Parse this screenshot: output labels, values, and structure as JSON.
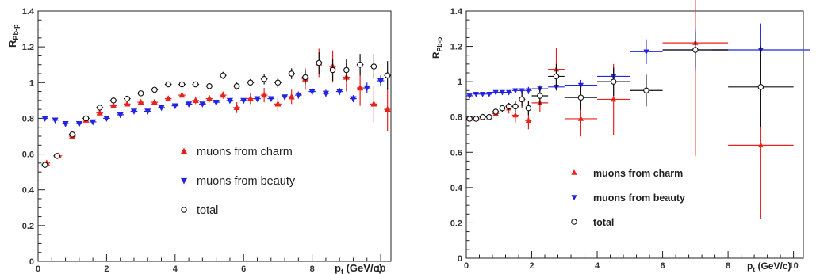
{
  "chart_data": [
    {
      "type": "scatter",
      "title": "",
      "ylabel": "R",
      "ylabel_sub": "Pb-p",
      "xlabel_main": "p",
      "xlabel_sub": "t",
      "xlabel_unit": "(GeV/c)",
      "xlim": [
        0,
        10.3
      ],
      "ylim": [
        0,
        1.4
      ],
      "xticks": [
        0,
        2,
        4,
        6,
        8,
        10
      ],
      "yticks": [
        0,
        0.2,
        0.4,
        0.6,
        0.8,
        1,
        1.2,
        1.4
      ],
      "grid": false,
      "legend_position": "bottom-center",
      "legend": [
        "muons from charm",
        "muons from beauty",
        "total"
      ],
      "series": [
        {
          "name": "muons from charm",
          "color": "#e8221c",
          "marker": "triangle-up",
          "x": [
            0.25,
            0.6,
            1.0,
            1.4,
            1.8,
            2.2,
            2.6,
            3.0,
            3.4,
            3.8,
            4.2,
            4.6,
            5.0,
            5.4,
            5.8,
            6.2,
            6.6,
            7.0,
            7.4,
            7.8,
            8.2,
            8.6,
            9.0,
            9.4,
            9.8,
            10.2
          ],
          "y": [
            0.55,
            0.59,
            0.7,
            0.79,
            0.83,
            0.87,
            0.88,
            0.89,
            0.89,
            0.91,
            0.93,
            0.9,
            0.91,
            0.93,
            0.86,
            0.91,
            0.93,
            0.88,
            0.92,
            1.02,
            1.11,
            1.09,
            1.03,
            0.97,
            0.88,
            0.85
          ],
          "ex": [
            0.1,
            0.1,
            0.1,
            0.1,
            0.1,
            0.1,
            0.1,
            0.1,
            0.1,
            0.1,
            0.1,
            0.1,
            0.1,
            0.1,
            0.1,
            0.1,
            0.1,
            0.1,
            0.1,
            0.1,
            0.1,
            0.1,
            0.1,
            0.1,
            0.1,
            0.1
          ],
          "ey": [
            0.01,
            0.01,
            0.01,
            0.01,
            0.01,
            0.01,
            0.01,
            0.01,
            0.01,
            0.01,
            0.01,
            0.02,
            0.02,
            0.02,
            0.03,
            0.03,
            0.04,
            0.04,
            0.04,
            0.06,
            0.08,
            0.09,
            0.08,
            0.1,
            0.1,
            0.12
          ]
        },
        {
          "name": "muons from beauty",
          "color": "#2424e0",
          "marker": "triangle-down",
          "x": [
            0.2,
            0.5,
            0.8,
            1.2,
            1.6,
            2.0,
            2.4,
            2.8,
            3.2,
            3.6,
            4.0,
            4.4,
            4.8,
            5.2,
            5.6,
            6.0,
            6.4,
            6.8,
            7.2,
            7.6,
            8.0,
            8.4,
            8.8,
            9.2,
            9.6,
            10.0
          ],
          "y": [
            0.8,
            0.79,
            0.77,
            0.77,
            0.78,
            0.8,
            0.82,
            0.84,
            0.84,
            0.86,
            0.87,
            0.88,
            0.88,
            0.89,
            0.9,
            0.9,
            0.91,
            0.91,
            0.92,
            0.93,
            0.95,
            0.94,
            0.95,
            0.91,
            0.97,
            1.01
          ],
          "ex": [
            0.1,
            0.1,
            0.1,
            0.1,
            0.1,
            0.1,
            0.1,
            0.1,
            0.1,
            0.1,
            0.1,
            0.1,
            0.1,
            0.1,
            0.1,
            0.1,
            0.1,
            0.1,
            0.1,
            0.1,
            0.1,
            0.1,
            0.1,
            0.1,
            0.1,
            0.1
          ],
          "ey": [
            0.01,
            0.01,
            0.01,
            0.01,
            0.01,
            0.01,
            0.01,
            0.01,
            0.01,
            0.01,
            0.01,
            0.01,
            0.01,
            0.01,
            0.01,
            0.01,
            0.01,
            0.01,
            0.01,
            0.02,
            0.02,
            0.02,
            0.02,
            0.02,
            0.03,
            0.03
          ]
        },
        {
          "name": "total",
          "color": "#111111",
          "marker": "circle-open",
          "x": [
            0.2,
            0.55,
            1.0,
            1.4,
            1.8,
            2.2,
            2.6,
            3.0,
            3.4,
            3.8,
            4.2,
            4.6,
            5.0,
            5.4,
            5.8,
            6.2,
            6.6,
            7.0,
            7.4,
            7.8,
            8.2,
            8.6,
            9.0,
            9.4,
            9.8,
            10.2
          ],
          "y": [
            0.54,
            0.59,
            0.71,
            0.8,
            0.86,
            0.9,
            0.91,
            0.94,
            0.96,
            0.99,
            0.99,
            0.99,
            0.98,
            1.04,
            0.98,
            1.0,
            1.02,
            1.0,
            1.05,
            1.03,
            1.11,
            1.07,
            1.07,
            1.1,
            1.09,
            1.04
          ],
          "ex": [
            0.1,
            0.1,
            0.1,
            0.1,
            0.1,
            0.1,
            0.1,
            0.1,
            0.1,
            0.1,
            0.1,
            0.1,
            0.1,
            0.1,
            0.1,
            0.1,
            0.1,
            0.1,
            0.1,
            0.1,
            0.1,
            0.1,
            0.1,
            0.1,
            0.1,
            0.1
          ],
          "ey": [
            0.01,
            0.01,
            0.01,
            0.01,
            0.01,
            0.01,
            0.01,
            0.01,
            0.01,
            0.01,
            0.01,
            0.01,
            0.01,
            0.02,
            0.02,
            0.02,
            0.03,
            0.03,
            0.03,
            0.04,
            0.06,
            0.06,
            0.06,
            0.06,
            0.07,
            0.08
          ]
        }
      ]
    },
    {
      "type": "scatter",
      "title": "",
      "ylabel": "R",
      "ylabel_sub": "Pb-p",
      "xlabel_main": "p",
      "xlabel_sub": "t",
      "xlabel_unit": "(GeV/c)",
      "xlim": [
        0,
        10.3
      ],
      "ylim": [
        0,
        1.4
      ],
      "xticks": [
        0,
        2,
        4,
        6,
        8,
        10
      ],
      "yticks": [
        0,
        0.2,
        0.4,
        0.6,
        0.8,
        1,
        1.2,
        1.4
      ],
      "grid": false,
      "legend_position": "bottom-center",
      "legend": [
        "muons from charm",
        "muons from beauty",
        "total"
      ],
      "series": [
        {
          "name": "muons from charm",
          "color": "#e8221c",
          "marker": "triangle-up",
          "x": [
            0.1,
            0.3,
            0.5,
            0.7,
            0.9,
            1.1,
            1.3,
            1.5,
            1.7,
            1.9,
            2.25,
            2.75,
            3.5,
            4.5,
            7.0,
            9.0
          ],
          "y": [
            0.79,
            0.79,
            0.8,
            0.8,
            0.82,
            0.85,
            0.85,
            0.81,
            0.9,
            0.78,
            0.88,
            1.07,
            0.79,
            0.9,
            1.22,
            0.64
          ],
          "ex": [
            0.1,
            0.1,
            0.1,
            0.1,
            0.1,
            0.1,
            0.1,
            0.1,
            0.1,
            0.1,
            0.25,
            0.25,
            0.5,
            0.5,
            1.0,
            1.0
          ],
          "ey": [
            0.01,
            0.01,
            0.01,
            0.01,
            0.01,
            0.02,
            0.03,
            0.04,
            0.05,
            0.05,
            0.05,
            0.12,
            0.1,
            0.2,
            0.64,
            0.42
          ]
        },
        {
          "name": "muons from beauty",
          "color": "#2424e0",
          "marker": "triangle-down",
          "x": [
            0.1,
            0.3,
            0.5,
            0.7,
            0.9,
            1.1,
            1.3,
            1.5,
            1.7,
            1.9,
            2.25,
            2.75,
            3.5,
            4.5,
            5.5,
            7.0,
            9.0
          ],
          "y": [
            0.92,
            0.93,
            0.93,
            0.93,
            0.94,
            0.94,
            0.94,
            0.95,
            0.95,
            0.95,
            0.96,
            0.97,
            0.98,
            1.03,
            1.17,
            1.18,
            1.18
          ],
          "ex": [
            0.1,
            0.1,
            0.1,
            0.1,
            0.1,
            0.1,
            0.1,
            0.1,
            0.1,
            0.1,
            0.25,
            0.25,
            0.5,
            0.5,
            0.5,
            1.0,
            1.5
          ],
          "ey": [
            0.01,
            0.01,
            0.01,
            0.01,
            0.01,
            0.01,
            0.01,
            0.01,
            0.01,
            0.02,
            0.02,
            0.02,
            0.03,
            0.04,
            0.07,
            0.12,
            0.15
          ]
        },
        {
          "name": "total",
          "color": "#111111",
          "marker": "circle-open",
          "x": [
            0.1,
            0.3,
            0.5,
            0.7,
            0.9,
            1.1,
            1.3,
            1.5,
            1.7,
            1.9,
            2.25,
            2.75,
            3.5,
            4.5,
            5.5,
            7.0,
            9.0
          ],
          "y": [
            0.79,
            0.79,
            0.8,
            0.8,
            0.83,
            0.85,
            0.86,
            0.86,
            0.9,
            0.85,
            0.92,
            1.03,
            0.91,
            1.0,
            0.95,
            1.18,
            0.97
          ],
          "ex": [
            0.1,
            0.1,
            0.1,
            0.1,
            0.1,
            0.1,
            0.1,
            0.1,
            0.1,
            0.1,
            0.25,
            0.25,
            0.5,
            0.5,
            0.5,
            1.0,
            1.0
          ],
          "ey": [
            0.01,
            0.01,
            0.01,
            0.01,
            0.01,
            0.02,
            0.02,
            0.03,
            0.04,
            0.04,
            0.05,
            0.07,
            0.07,
            0.08,
            0.09,
            0.1,
            0.23
          ]
        }
      ]
    }
  ]
}
